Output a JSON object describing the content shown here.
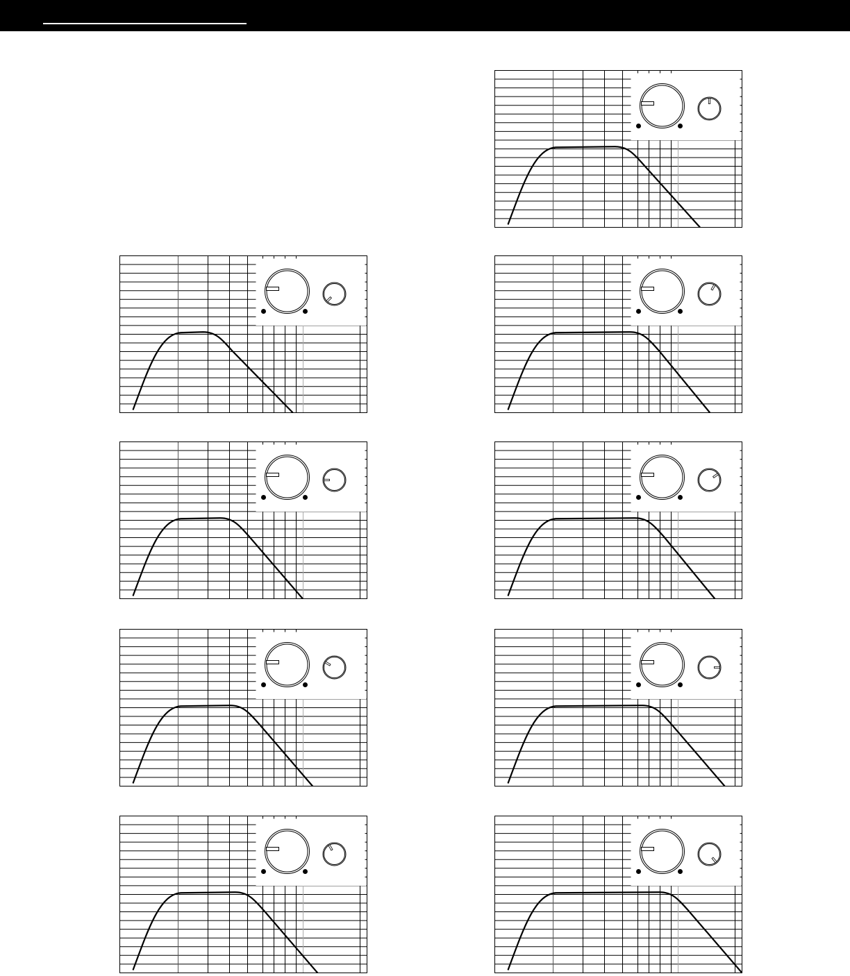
{
  "header": {
    "bar_color": "#000000",
    "rule_color": "#ffffff"
  },
  "chart_data": [
    {
      "type": "line",
      "id": "left-1",
      "grid": true,
      "small_knob_angle_deg": 225,
      "curve": {
        "plateau_level": 51,
        "knee_x": 37,
        "end_x": 70
      }
    },
    {
      "type": "line",
      "id": "left-2",
      "grid": true,
      "small_knob_angle_deg": 270,
      "curve": {
        "plateau_level": 51,
        "knee_x": 44,
        "end_x": 74
      }
    },
    {
      "type": "line",
      "id": "left-3",
      "grid": true,
      "small_knob_angle_deg": 300,
      "curve": {
        "plateau_level": 51,
        "knee_x": 48,
        "end_x": 78
      }
    },
    {
      "type": "line",
      "id": "left-4",
      "grid": true,
      "small_knob_angle_deg": 330,
      "curve": {
        "plateau_level": 51,
        "knee_x": 50,
        "end_x": 80
      }
    },
    {
      "type": "line",
      "id": "right-1",
      "grid": true,
      "small_knob_angle_deg": 0,
      "curve": {
        "plateau_level": 51,
        "knee_x": 52,
        "end_x": 83
      }
    },
    {
      "type": "line",
      "id": "right-2",
      "grid": true,
      "small_knob_angle_deg": 30,
      "curve": {
        "plateau_level": 51,
        "knee_x": 58,
        "end_x": 87
      }
    },
    {
      "type": "line",
      "id": "right-3",
      "grid": true,
      "small_knob_angle_deg": 55,
      "curve": {
        "plateau_level": 51,
        "knee_x": 60,
        "end_x": 89
      }
    },
    {
      "type": "line",
      "id": "right-4",
      "grid": true,
      "small_knob_angle_deg": 90,
      "curve": {
        "plateau_level": 51,
        "knee_x": 63,
        "end_x": 93
      }
    },
    {
      "type": "line",
      "id": "right-5",
      "grid": true,
      "small_knob_angle_deg": 140,
      "curve": {
        "plateau_level": 51,
        "knee_x": 70,
        "end_x": 100
      }
    }
  ]
}
